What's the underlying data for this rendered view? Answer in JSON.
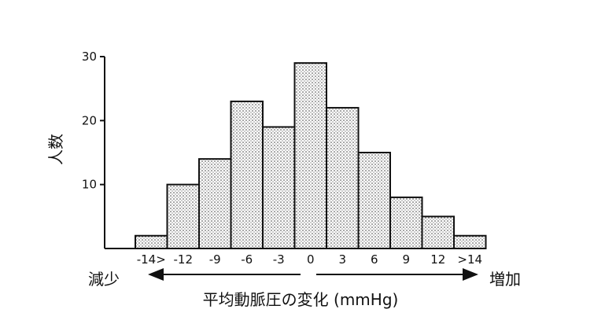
{
  "chart_data": {
    "type": "bar",
    "categories": [
      "-14>",
      "-12",
      "-9",
      "-6",
      "-3",
      "0",
      "3",
      "6",
      "9",
      "12",
      ">14"
    ],
    "values": [
      2,
      10,
      14,
      23,
      19,
      29,
      22,
      15,
      8,
      5,
      2
    ],
    "ylabel": "人数",
    "xlabel": "平均動脈圧の変化 (mmHg)",
    "ylim": [
      0,
      30
    ],
    "yticks": [
      10,
      20,
      30
    ],
    "grid": false,
    "left_annotation": "減少",
    "right_annotation": "増加",
    "bar_fill": "#d9d9d9",
    "bar_stroke": "#111111"
  }
}
